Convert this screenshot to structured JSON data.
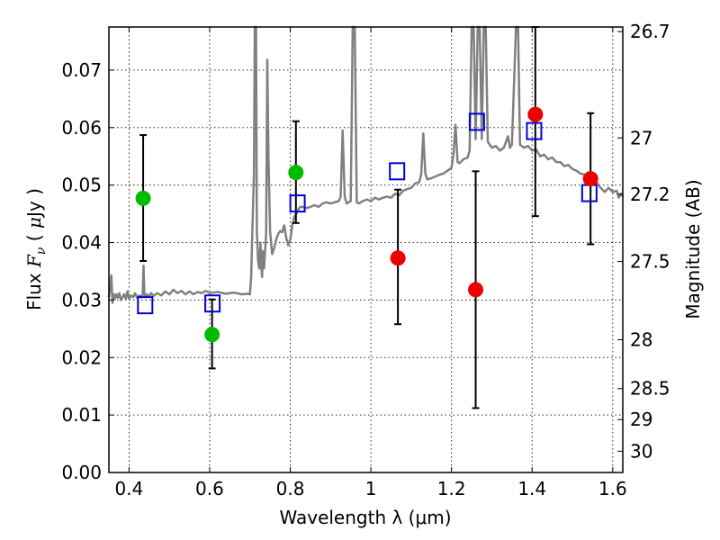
{
  "chart_data": {
    "type": "scatter",
    "xlabel": "Wavelength  λ (μm)",
    "ylabel": "Flux  F_ν  ( μJy )",
    "ylabel_parts": {
      "pre": "Flux  ",
      "sym": "F",
      "sub": "ν",
      "mid": "  ( ",
      "mu": "μ",
      "post": "Jy )"
    },
    "y2label": "Magnitude (AB)",
    "xlim": [
      0.35,
      1.625
    ],
    "ylim": [
      0.0,
      0.0775
    ],
    "grid": true,
    "x_ticks": [
      {
        "v": 0.4,
        "t": "0.4"
      },
      {
        "v": 0.6,
        "t": "0.6"
      },
      {
        "v": 0.8,
        "t": "0.8"
      },
      {
        "v": 1.0,
        "t": "1"
      },
      {
        "v": 1.2,
        "t": "1.2"
      },
      {
        "v": 1.4,
        "t": "1.4"
      },
      {
        "v": 1.6,
        "t": "1.6"
      }
    ],
    "y_ticks": [
      {
        "v": 0.0,
        "t": "0.00"
      },
      {
        "v": 0.01,
        "t": "0.01"
      },
      {
        "v": 0.02,
        "t": "0.02"
      },
      {
        "v": 0.03,
        "t": "0.03"
      },
      {
        "v": 0.04,
        "t": "0.04"
      },
      {
        "v": 0.05,
        "t": "0.05"
      },
      {
        "v": 0.06,
        "t": "0.06"
      },
      {
        "v": 0.07,
        "t": "0.07"
      }
    ],
    "y2_ticks": [
      {
        "v": 0.0767,
        "t": "26.7"
      },
      {
        "v": 0.0582,
        "t": "27"
      },
      {
        "v": 0.0484,
        "t": "27.2"
      },
      {
        "v": 0.0367,
        "t": "27.5"
      },
      {
        "v": 0.0231,
        "t": "28"
      },
      {
        "v": 0.0146,
        "t": "28.5"
      },
      {
        "v": 0.0092,
        "t": "29"
      },
      {
        "v": 0.0037,
        "t": "30"
      }
    ],
    "colors": {
      "spectrum": "#808080",
      "green": "#00bb00",
      "red": "#ee0000",
      "model": "#0000dd",
      "errorbar": "#000000"
    },
    "spectrum": [
      [
        0.35,
        0.0305
      ],
      [
        0.353,
        0.032
      ],
      [
        0.356,
        0.0343
      ],
      [
        0.359,
        0.0295
      ],
      [
        0.362,
        0.031
      ],
      [
        0.365,
        0.0302
      ],
      [
        0.368,
        0.031
      ],
      [
        0.372,
        0.0304
      ],
      [
        0.376,
        0.0312
      ],
      [
        0.38,
        0.03
      ],
      [
        0.384,
        0.0305
      ],
      [
        0.388,
        0.031
      ],
      [
        0.392,
        0.0302
      ],
      [
        0.396,
        0.0315
      ],
      [
        0.4,
        0.0302
      ],
      [
        0.405,
        0.0308
      ],
      [
        0.41,
        0.0305
      ],
      [
        0.415,
        0.0312
      ],
      [
        0.42,
        0.0304
      ],
      [
        0.425,
        0.0308
      ],
      [
        0.43,
        0.0305
      ],
      [
        0.434,
        0.031
      ],
      [
        0.436,
        0.036
      ],
      [
        0.438,
        0.031
      ],
      [
        0.44,
        0.0305
      ],
      [
        0.445,
        0.031
      ],
      [
        0.45,
        0.0306
      ],
      [
        0.455,
        0.0312
      ],
      [
        0.46,
        0.0307
      ],
      [
        0.47,
        0.0312
      ],
      [
        0.48,
        0.0308
      ],
      [
        0.49,
        0.0315
      ],
      [
        0.5,
        0.031
      ],
      [
        0.51,
        0.0318
      ],
      [
        0.52,
        0.0312
      ],
      [
        0.53,
        0.0316
      ],
      [
        0.54,
        0.031
      ],
      [
        0.55,
        0.0315
      ],
      [
        0.56,
        0.031
      ],
      [
        0.57,
        0.0314
      ],
      [
        0.58,
        0.0312
      ],
      [
        0.59,
        0.0316
      ],
      [
        0.6,
        0.0312
      ],
      [
        0.62,
        0.0314
      ],
      [
        0.64,
        0.0311
      ],
      [
        0.66,
        0.0313
      ],
      [
        0.68,
        0.031
      ],
      [
        0.695,
        0.0311
      ],
      [
        0.7,
        0.031
      ],
      [
        0.703,
        0.034
      ],
      [
        0.706,
        0.042
      ],
      [
        0.708,
        0.047
      ],
      [
        0.71,
        0.052
      ],
      [
        0.712,
        0.0775
      ],
      [
        0.715,
        0.0775
      ],
      [
        0.717,
        0.042
      ],
      [
        0.72,
        0.037
      ],
      [
        0.723,
        0.0355
      ],
      [
        0.726,
        0.04
      ],
      [
        0.728,
        0.036
      ],
      [
        0.73,
        0.034
      ],
      [
        0.732,
        0.0385
      ],
      [
        0.735,
        0.0355
      ],
      [
        0.74,
        0.0415
      ],
      [
        0.743,
        0.0718
      ],
      [
        0.746,
        0.055
      ],
      [
        0.75,
        0.042
      ],
      [
        0.755,
        0.038
      ],
      [
        0.76,
        0.039
      ],
      [
        0.765,
        0.0405
      ],
      [
        0.77,
        0.0415
      ],
      [
        0.775,
        0.042
      ],
      [
        0.78,
        0.0418
      ],
      [
        0.785,
        0.043
      ],
      [
        0.79,
        0.0408
      ],
      [
        0.795,
        0.0395
      ],
      [
        0.8,
        0.0405
      ],
      [
        0.805,
        0.043
      ],
      [
        0.81,
        0.0445
      ],
      [
        0.815,
        0.045
      ],
      [
        0.82,
        0.0458
      ],
      [
        0.825,
        0.0462
      ],
      [
        0.83,
        0.0462
      ],
      [
        0.84,
        0.046
      ],
      [
        0.85,
        0.0462
      ],
      [
        0.86,
        0.0465
      ],
      [
        0.87,
        0.0462
      ],
      [
        0.88,
        0.0468
      ],
      [
        0.89,
        0.047
      ],
      [
        0.9,
        0.0468
      ],
      [
        0.91,
        0.047
      ],
      [
        0.92,
        0.0472
      ],
      [
        0.925,
        0.048
      ],
      [
        0.93,
        0.0595
      ],
      [
        0.935,
        0.048
      ],
      [
        0.94,
        0.0468
      ],
      [
        0.95,
        0.0472
      ],
      [
        0.955,
        0.0775
      ],
      [
        0.96,
        0.0775
      ],
      [
        0.965,
        0.047
      ],
      [
        0.97,
        0.0468
      ],
      [
        0.98,
        0.0472
      ],
      [
        0.99,
        0.0475
      ],
      [
        1.0,
        0.0472
      ],
      [
        1.01,
        0.0478
      ],
      [
        1.02,
        0.0475
      ],
      [
        1.03,
        0.0478
      ],
      [
        1.04,
        0.048
      ],
      [
        1.05,
        0.0478
      ],
      [
        1.06,
        0.0485
      ],
      [
        1.07,
        0.0482
      ],
      [
        1.08,
        0.049
      ],
      [
        1.09,
        0.0493
      ],
      [
        1.1,
        0.0495
      ],
      [
        1.11,
        0.0503
      ],
      [
        1.12,
        0.0505
      ],
      [
        1.125,
        0.052
      ],
      [
        1.13,
        0.059
      ],
      [
        1.135,
        0.052
      ],
      [
        1.14,
        0.051
      ],
      [
        1.15,
        0.0512
      ],
      [
        1.16,
        0.0515
      ],
      [
        1.17,
        0.0518
      ],
      [
        1.18,
        0.052
      ],
      [
        1.19,
        0.0525
      ],
      [
        1.2,
        0.053
      ],
      [
        1.205,
        0.0555
      ],
      [
        1.21,
        0.0605
      ],
      [
        1.215,
        0.054
      ],
      [
        1.22,
        0.0538
      ],
      [
        1.23,
        0.0545
      ],
      [
        1.24,
        0.0548
      ],
      [
        1.245,
        0.056
      ],
      [
        1.25,
        0.0775
      ],
      [
        1.255,
        0.0775
      ],
      [
        1.26,
        0.058
      ],
      [
        1.265,
        0.0775
      ],
      [
        1.27,
        0.0775
      ],
      [
        1.275,
        0.058
      ],
      [
        1.28,
        0.0775
      ],
      [
        1.285,
        0.0775
      ],
      [
        1.29,
        0.0575
      ],
      [
        1.3,
        0.0565
      ],
      [
        1.31,
        0.0568
      ],
      [
        1.32,
        0.056
      ],
      [
        1.33,
        0.0565
      ],
      [
        1.34,
        0.0585
      ],
      [
        1.345,
        0.0565
      ],
      [
        1.35,
        0.057
      ],
      [
        1.36,
        0.0775
      ],
      [
        1.365,
        0.0775
      ],
      [
        1.37,
        0.057
      ],
      [
        1.38,
        0.0565
      ],
      [
        1.39,
        0.0568
      ],
      [
        1.4,
        0.056
      ],
      [
        1.41,
        0.0562
      ],
      [
        1.42,
        0.055
      ],
      [
        1.43,
        0.0553
      ],
      [
        1.44,
        0.0545
      ],
      [
        1.45,
        0.0548
      ],
      [
        1.46,
        0.054
      ],
      [
        1.47,
        0.054
      ],
      [
        1.48,
        0.0533
      ],
      [
        1.49,
        0.0535
      ],
      [
        1.5,
        0.0528
      ],
      [
        1.51,
        0.0525
      ],
      [
        1.52,
        0.052
      ],
      [
        1.53,
        0.0518
      ],
      [
        1.54,
        0.0512
      ],
      [
        1.55,
        0.0505
      ],
      [
        1.56,
        0.0505
      ],
      [
        1.57,
        0.0495
      ],
      [
        1.58,
        0.0488
      ],
      [
        1.59,
        0.0495
      ],
      [
        1.6,
        0.0488
      ],
      [
        1.61,
        0.049
      ],
      [
        1.615,
        0.0478
      ],
      [
        1.62,
        0.0485
      ],
      [
        1.625,
        0.048
      ]
    ],
    "observed_green": [
      {
        "x": 0.435,
        "y": 0.0477,
        "lo": 0.0368,
        "hi": 0.0587
      },
      {
        "x": 0.606,
        "y": 0.024,
        "lo": 0.0181,
        "hi": 0.0301
      },
      {
        "x": 0.814,
        "y": 0.0522,
        "lo": 0.0434,
        "hi": 0.0611
      }
    ],
    "observed_red": [
      {
        "x": 1.067,
        "y": 0.0373,
        "lo": 0.0258,
        "hi": 0.0492
      },
      {
        "x": 1.26,
        "y": 0.0318,
        "lo": 0.0112,
        "hi": 0.0524
      },
      {
        "x": 1.408,
        "y": 0.0623,
        "lo": 0.0446,
        "hi": 0.0775
      },
      {
        "x": 1.545,
        "y": 0.0511,
        "lo": 0.0397,
        "hi": 0.0625
      }
    ],
    "model_squares": [
      {
        "x": 0.44,
        "y": 0.0291
      },
      {
        "x": 0.607,
        "y": 0.0294
      },
      {
        "x": 0.818,
        "y": 0.0468
      },
      {
        "x": 1.065,
        "y": 0.0524
      },
      {
        "x": 1.263,
        "y": 0.061
      },
      {
        "x": 1.405,
        "y": 0.0594
      },
      {
        "x": 1.542,
        "y": 0.0486
      }
    ]
  }
}
